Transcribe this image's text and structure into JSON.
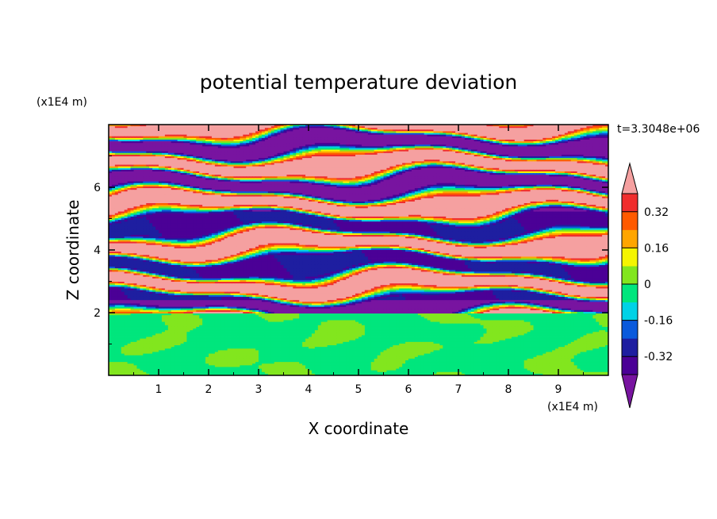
{
  "chart_data": {
    "type": "heatmap",
    "title": "potential temperature deviation",
    "xlabel": "X coordinate",
    "ylabel": "Z coordinate",
    "x_unit": "(x1E4 m)",
    "y_unit": "(x1E4 m)",
    "time_label": "t=3.3048e+06",
    "xlim": [
      0,
      10
    ],
    "ylim": [
      0,
      8
    ],
    "x_ticks": [
      "1",
      "2",
      "3",
      "4",
      "5",
      "6",
      "7",
      "8",
      "9"
    ],
    "y_ticks": [
      "2",
      "4",
      "6"
    ],
    "x_tick_values": [
      1,
      2,
      3,
      4,
      5,
      6,
      7,
      8,
      9
    ],
    "y_tick_values": [
      2,
      4,
      6
    ],
    "colorbar": {
      "tick_labels": [
        "0.32",
        "0.16",
        "0",
        "-0.16",
        "-0.32"
      ],
      "tick_values": [
        0.32,
        0.16,
        0,
        -0.16,
        -0.32
      ],
      "levels": [
        -0.4,
        -0.32,
        -0.24,
        -0.16,
        -0.08,
        0,
        0.08,
        0.16,
        0.24,
        0.32,
        0.4
      ],
      "colors": [
        "#4b0096",
        "#1e1ea0",
        "#0a5adc",
        "#00d2e6",
        "#00e67d",
        "#82e61e",
        "#f5f500",
        "#ffa500",
        "#ff5a00",
        "#f02d2d"
      ],
      "under_color": "#7814a0",
      "over_color": "#f5a0a0",
      "extend": "both"
    },
    "field_description_values": {
      "lower_layer_z_range": [
        0,
        2
      ],
      "lower_layer_levels": [
        0,
        0.08
      ],
      "upper_layer_z_range": [
        2,
        8
      ],
      "upper_layer_pattern": "horizontal bands alternating between over and under colors"
    }
  }
}
